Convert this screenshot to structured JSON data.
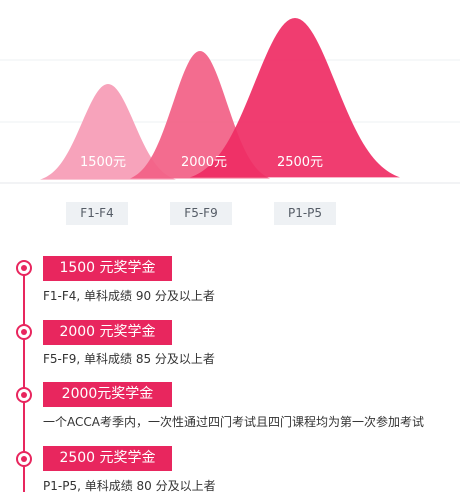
{
  "chart_data": {
    "type": "area",
    "categories": [
      "F1-F4",
      "F5-F9",
      "P1-P5"
    ],
    "values": [
      1500,
      2000,
      2500
    ],
    "data_labels": [
      "1500元",
      "2000元",
      "2500元"
    ],
    "colors": [
      "#f7a3bb",
      "#f25f86",
      "#ef2d64"
    ],
    "grid": true,
    "legend": "none",
    "ylim": [
      0,
      2500
    ]
  },
  "timeline": {
    "line_color": "#e8265e",
    "items": [
      {
        "title": "1500 元奖学金",
        "desc": "F1-F4, 单科成绩 90 分及以上者"
      },
      {
        "title": "2000 元奖学金",
        "desc": "F5-F9, 单科成绩 85 分及以上者"
      },
      {
        "title": "2000元奖学金",
        "desc": "一个ACCA考季内，一次性通过四门考试且四门课程均为第一次参加考试"
      },
      {
        "title": "2500 元奖学金",
        "desc": "P1-P5, 单科成绩 80 分及以上者"
      }
    ]
  }
}
